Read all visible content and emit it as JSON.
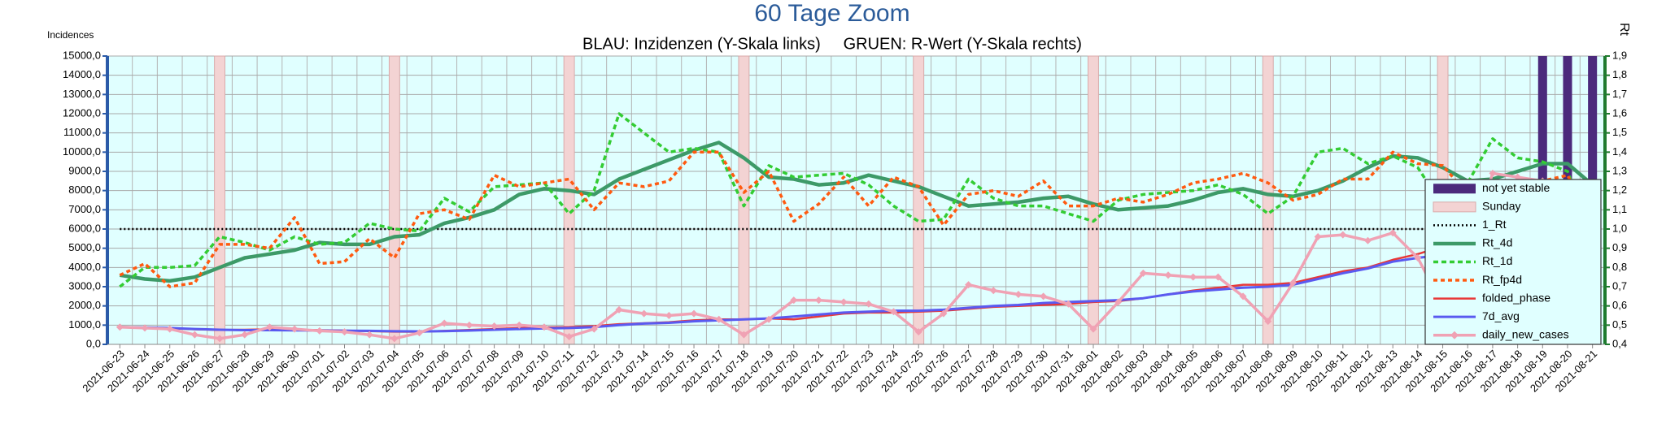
{
  "chart_data": {
    "type": "line",
    "title": "60 Tage Zoom",
    "subtitle": "BLAU: Inzidenzen (Y-Skala links)     GRUEN: R-Wert (Y-Skala rechts)",
    "y_label": "Incidences",
    "y2_label": "Rt",
    "categories": [
      "2021-06-23",
      "2021-06-24",
      "2021-06-25",
      "2021-06-26",
      "2021-06-27",
      "2021-06-28",
      "2021-06-29",
      "2021-06-30",
      "2021-07-01",
      "2021-07-02",
      "2021-07-03",
      "2021-07-04",
      "2021-07-05",
      "2021-07-06",
      "2021-07-07",
      "2021-07-08",
      "2021-07-09",
      "2021-07-10",
      "2021-07-11",
      "2021-07-12",
      "2021-07-13",
      "2021-07-14",
      "2021-07-15",
      "2021-07-16",
      "2021-07-17",
      "2021-07-18",
      "2021-07-19",
      "2021-07-20",
      "2021-07-21",
      "2021-07-22",
      "2021-07-23",
      "2021-07-24",
      "2021-07-25",
      "2021-07-26",
      "2021-07-27",
      "2021-07-28",
      "2021-07-29",
      "2021-07-30",
      "2021-07-31",
      "2021-08-01",
      "2021-08-02",
      "2021-08-03",
      "2021-08-04",
      "2021-08-05",
      "2021-08-06",
      "2021-08-07",
      "2021-08-08",
      "2021-08-09",
      "2021-08-10",
      "2021-08-11",
      "2021-08-12",
      "2021-08-13",
      "2021-08-14",
      "2021-08-15",
      "2021-08-16",
      "2021-08-17",
      "2021-08-18",
      "2021-08-19",
      "2021-08-20",
      "2021-08-21"
    ],
    "ylim": [
      0,
      15000
    ],
    "yticks": [
      {
        "value": 0,
        "label": "0,0"
      },
      {
        "value": 1000,
        "label": "1000,0"
      },
      {
        "value": 2000,
        "label": "2000,0"
      },
      {
        "value": 3000,
        "label": "3000,0"
      },
      {
        "value": 4000,
        "label": "4000,0"
      },
      {
        "value": 5000,
        "label": "5000,0"
      },
      {
        "value": 6000,
        "label": "6000,0"
      },
      {
        "value": 7000,
        "label": "7000,0"
      },
      {
        "value": 8000,
        "label": "8000,0"
      },
      {
        "value": 9000,
        "label": "9000,0"
      },
      {
        "value": 10000,
        "label": "10000,0"
      },
      {
        "value": 11000,
        "label": "11000,0"
      },
      {
        "value": 12000,
        "label": "12000,0"
      },
      {
        "value": 13000,
        "label": "13000,0"
      },
      {
        "value": 14000,
        "label": "14000,0"
      },
      {
        "value": 15000,
        "label": "15000,0"
      }
    ],
    "y2lim": [
      0.4,
      1.9
    ],
    "y2ticks": [
      {
        "value": 0.4,
        "label": "0,4"
      },
      {
        "value": 0.5,
        "label": "0,5"
      },
      {
        "value": 0.6,
        "label": "0,6"
      },
      {
        "value": 0.7,
        "label": "0,7"
      },
      {
        "value": 0.8,
        "label": "0,8"
      },
      {
        "value": 0.9,
        "label": "0,9"
      },
      {
        "value": 1.0,
        "label": "1,0"
      },
      {
        "value": 1.1,
        "label": "1,1"
      },
      {
        "value": 1.2,
        "label": "1,2"
      },
      {
        "value": 1.3,
        "label": "1,3"
      },
      {
        "value": 1.4,
        "label": "1,4"
      },
      {
        "value": 1.5,
        "label": "1,5"
      },
      {
        "value": 1.6,
        "label": "1,6"
      },
      {
        "value": 1.7,
        "label": "1,7"
      },
      {
        "value": 1.8,
        "label": "1,8"
      },
      {
        "value": 1.9,
        "label": "1,9"
      }
    ],
    "grid": true,
    "legend": "right",
    "series": [
      {
        "name": "not yet stable",
        "kind": "bar",
        "color": "#4b2a7c",
        "values": [
          null,
          null,
          null,
          null,
          null,
          null,
          null,
          null,
          null,
          null,
          null,
          null,
          null,
          null,
          null,
          null,
          null,
          null,
          null,
          null,
          null,
          null,
          null,
          null,
          null,
          null,
          null,
          null,
          null,
          null,
          null,
          null,
          null,
          null,
          null,
          null,
          null,
          null,
          null,
          null,
          null,
          null,
          null,
          null,
          null,
          null,
          null,
          null,
          null,
          null,
          null,
          null,
          null,
          null,
          null,
          null,
          null,
          15000,
          15000,
          15000
        ]
      },
      {
        "name": "Sunday",
        "kind": "bar",
        "color": "#f3d3d3",
        "values": [
          null,
          null,
          null,
          null,
          15000,
          null,
          null,
          null,
          null,
          null,
          null,
          15000,
          null,
          null,
          null,
          null,
          null,
          null,
          15000,
          null,
          null,
          null,
          null,
          null,
          null,
          15000,
          null,
          null,
          null,
          null,
          null,
          null,
          15000,
          null,
          null,
          null,
          null,
          null,
          null,
          15000,
          null,
          null,
          null,
          null,
          null,
          null,
          15000,
          null,
          null,
          null,
          null,
          null,
          null,
          15000,
          null,
          null,
          null,
          null,
          null,
          null
        ]
      },
      {
        "name": "1_Rt",
        "kind": "line",
        "axis": "y2",
        "color": "#000000",
        "dash": "2 3",
        "width": 2.5,
        "values": [
          1,
          1,
          1,
          1,
          1,
          1,
          1,
          1,
          1,
          1,
          1,
          1,
          1,
          1,
          1,
          1,
          1,
          1,
          1,
          1,
          1,
          1,
          1,
          1,
          1,
          1,
          1,
          1,
          1,
          1,
          1,
          1,
          1,
          1,
          1,
          1,
          1,
          1,
          1,
          1,
          1,
          1,
          1,
          1,
          1,
          1,
          1,
          1,
          1,
          1,
          1,
          1,
          1,
          1,
          1,
          1,
          1,
          1,
          1,
          1
        ]
      },
      {
        "name": "Rt_4d",
        "kind": "line",
        "axis": "y2",
        "color": "#3d9a68",
        "width": 4.5,
        "values": [
          0.76,
          0.74,
          0.73,
          0.75,
          0.8,
          0.85,
          0.87,
          0.89,
          0.93,
          0.92,
          0.92,
          0.96,
          0.97,
          1.03,
          1.06,
          1.1,
          1.18,
          1.21,
          1.2,
          1.18,
          1.26,
          1.31,
          1.36,
          1.41,
          1.45,
          1.37,
          1.27,
          1.26,
          1.23,
          1.24,
          1.28,
          1.25,
          1.22,
          1.17,
          1.12,
          1.13,
          1.14,
          1.16,
          1.17,
          1.13,
          1.1,
          1.11,
          1.12,
          1.15,
          1.19,
          1.21,
          1.18,
          1.17,
          1.2,
          1.25,
          1.32,
          1.38,
          1.37,
          1.32,
          1.25,
          1.26,
          1.3,
          1.34,
          1.34,
          1.23
        ]
      },
      {
        "name": "Rt_1d",
        "kind": "line",
        "axis": "y2",
        "color": "#33cc33",
        "dash": "6 4",
        "width": 3.5,
        "values": [
          0.7,
          0.8,
          0.8,
          0.81,
          0.96,
          0.93,
          0.89,
          0.96,
          0.92,
          0.93,
          1.03,
          1.0,
          0.99,
          1.16,
          1.09,
          1.22,
          1.23,
          1.24,
          1.08,
          1.2,
          1.6,
          1.5,
          1.4,
          1.42,
          1.4,
          1.12,
          1.33,
          1.27,
          1.28,
          1.29,
          1.23,
          1.12,
          1.04,
          1.05,
          1.26,
          1.16,
          1.12,
          1.12,
          1.08,
          1.04,
          1.15,
          1.18,
          1.19,
          1.2,
          1.23,
          1.18,
          1.08,
          1.17,
          1.4,
          1.42,
          1.34,
          1.38,
          1.32,
          1.12,
          1.24,
          1.47,
          1.37,
          1.35,
          1.3,
          0.94
        ]
      },
      {
        "name": "Rt_fp4d",
        "kind": "line",
        "axis": "y2",
        "color": "#ff5a10",
        "dash": "5 4",
        "width": 3.5,
        "values": [
          0.76,
          0.82,
          0.7,
          0.72,
          0.92,
          0.92,
          0.9,
          1.06,
          0.82,
          0.83,
          0.95,
          0.85,
          1.08,
          1.1,
          1.05,
          1.28,
          1.22,
          1.24,
          1.26,
          1.1,
          1.24,
          1.22,
          1.25,
          1.4,
          1.4,
          1.19,
          1.3,
          1.04,
          1.13,
          1.27,
          1.12,
          1.27,
          1.22,
          1.02,
          1.18,
          1.2,
          1.17,
          1.25,
          1.12,
          1.12,
          1.16,
          1.14,
          1.18,
          1.24,
          1.26,
          1.29,
          1.24,
          1.15,
          1.18,
          1.26,
          1.26,
          1.4,
          1.34,
          1.33,
          1.18,
          1.19,
          1.19,
          1.25,
          1.28,
          1.02
        ]
      },
      {
        "name": "folded_phase",
        "kind": "line",
        "color": "#e83838",
        "width": 2.5,
        "values": [
          900,
          870,
          840,
          780,
          750,
          760,
          780,
          760,
          740,
          720,
          690,
          660,
          650,
          700,
          750,
          800,
          850,
          880,
          900,
          950,
          1050,
          1100,
          1150,
          1250,
          1300,
          1300,
          1350,
          1300,
          1450,
          1600,
          1650,
          1650,
          1700,
          1750,
          1850,
          1950,
          2000,
          2050,
          2100,
          2200,
          2250,
          2400,
          2600,
          2800,
          2950,
          3100,
          3100,
          3200,
          3500,
          3800,
          4000,
          4400,
          4700,
          5100,
          4800,
          5300,
          5500,
          6000,
          5900,
          5100
        ]
      },
      {
        "name": "7d_avg",
        "kind": "line",
        "color": "#5a5af0",
        "width": 3,
        "values": [
          900,
          880,
          850,
          800,
          760,
          740,
          740,
          730,
          720,
          710,
          700,
          680,
          670,
          690,
          720,
          760,
          800,
          830,
          850,
          900,
          1000,
          1080,
          1120,
          1200,
          1250,
          1300,
          1350,
          1450,
          1550,
          1650,
          1700,
          1750,
          1750,
          1800,
          1900,
          2000,
          2050,
          2150,
          2200,
          2250,
          2300,
          2400,
          2600,
          2750,
          2850,
          2950,
          3000,
          3100,
          3400,
          3700,
          3950,
          4300,
          4500,
          4650,
          4900,
          5300,
          5700,
          6200,
          6500,
          6600
        ]
      },
      {
        "name": "daily_new_cases",
        "kind": "line",
        "color": "#f0a2b4",
        "width": 3.5,
        "marker": "diamond",
        "values": [
          900,
          850,
          800,
          500,
          300,
          500,
          900,
          800,
          700,
          650,
          500,
          300,
          600,
          1100,
          1000,
          950,
          1000,
          900,
          400,
          800,
          1800,
          1600,
          1500,
          1600,
          1300,
          500,
          1300,
          2300,
          2300,
          2200,
          2100,
          1700,
          650,
          1600,
          3100,
          2800,
          2600,
          2500,
          2100,
          800,
          2200,
          3700,
          3600,
          3500,
          3500,
          2500,
          1200,
          3200,
          5600,
          5700,
          5400,
          5800,
          4500,
          2000,
          4800,
          8900,
          8700,
          8500,
          8000,
          5100
        ]
      }
    ]
  }
}
